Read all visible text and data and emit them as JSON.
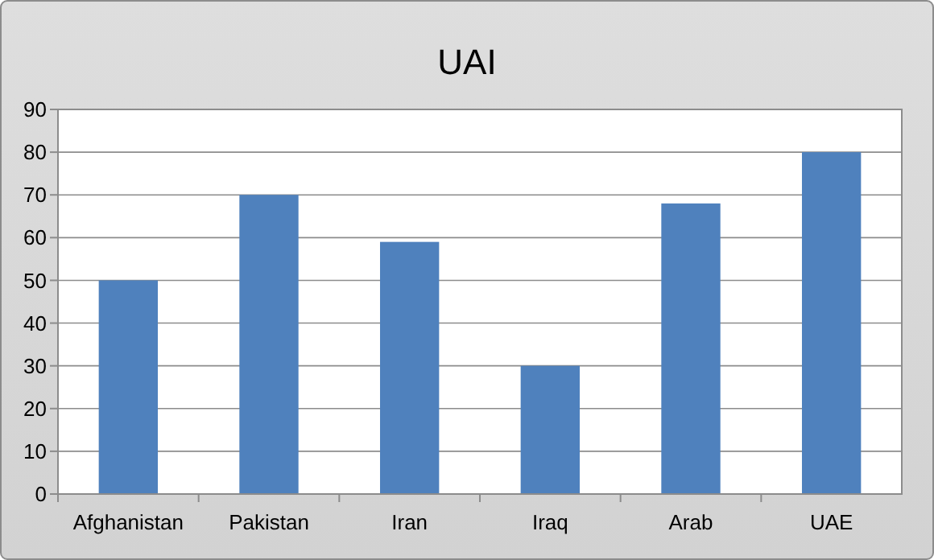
{
  "chart_data": {
    "type": "bar",
    "title": "UAI",
    "categories": [
      "Afghanistan",
      "Pakistan",
      "Iran",
      "Iraq",
      "Arab",
      "UAE"
    ],
    "values": [
      50,
      70,
      59,
      30,
      68,
      80
    ],
    "color": "#4f81bd",
    "ylim": [
      0,
      90
    ],
    "yticks": [
      0,
      10,
      20,
      30,
      40,
      50,
      60,
      70,
      80,
      90
    ],
    "grid": "y"
  }
}
